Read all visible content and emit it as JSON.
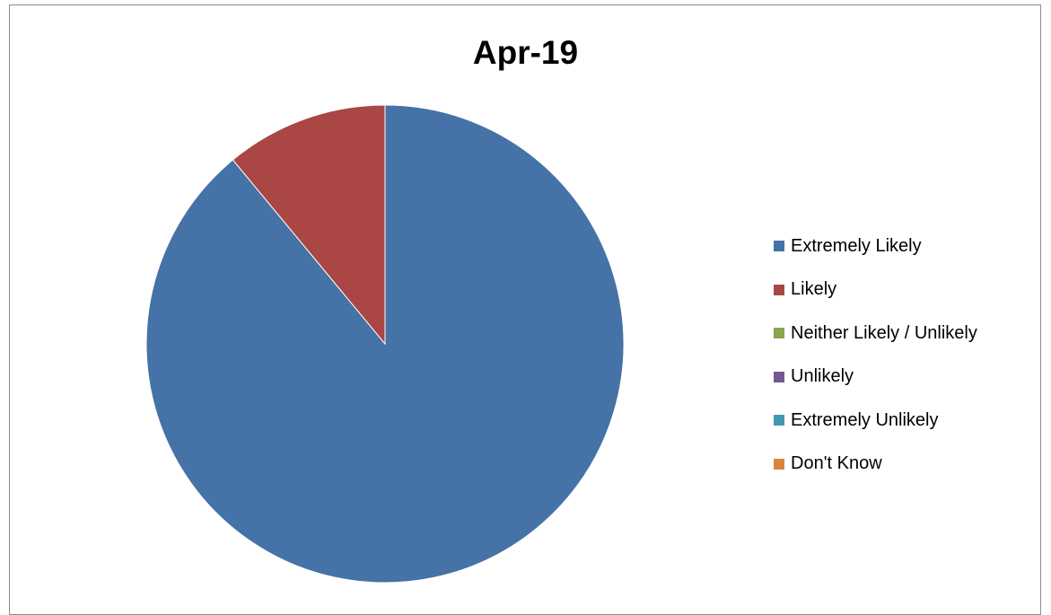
{
  "chart_data": {
    "type": "pie",
    "title": "Apr-19",
    "legend_position": "right",
    "series": [
      {
        "categories": [
          "Extremely Likely",
          "Likely",
          "Neither Likely / Unlikely",
          "Unlikely",
          "Extremely Unlikely",
          "Don't Know"
        ],
        "values": [
          89,
          11,
          0,
          0,
          0,
          0
        ]
      }
    ],
    "colors": [
      "#4572a7",
      "#aa4643",
      "#89a54e",
      "#71588f",
      "#4198af",
      "#db843d"
    ]
  }
}
